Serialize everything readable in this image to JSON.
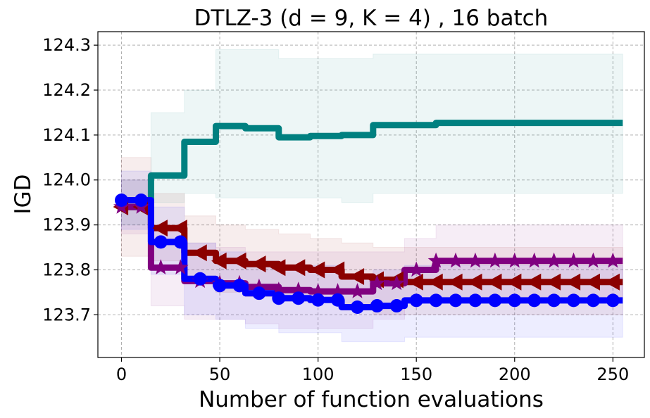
{
  "chart_data": {
    "type": "line",
    "title": "DTLZ-3 (d = 9, K = 4) , 16 batch",
    "xlabel": "Number of function evaluations",
    "ylabel": "IGD",
    "xlim": [
      -12,
      266
    ],
    "ylim": [
      123.605,
      124.33
    ],
    "xticks": [
      0,
      50,
      100,
      150,
      200,
      250
    ],
    "yticks": [
      123.7,
      123.8,
      123.9,
      124.0,
      124.1,
      124.2,
      124.3
    ],
    "ytick_labels": [
      "123.7",
      "123.8",
      "123.9",
      "124.0",
      "124.1",
      "124.2",
      "124.3"
    ],
    "grid": true,
    "series": [
      {
        "name": "teal",
        "color": "#008080",
        "marker": "none",
        "x": [
          0,
          15,
          32,
          48,
          63,
          80,
          96,
          112,
          128,
          144,
          160,
          176,
          192,
          208,
          224,
          240,
          255
        ],
        "values": [
          123.94,
          124.01,
          124.085,
          124.12,
          124.115,
          124.095,
          124.098,
          124.1,
          124.122,
          124.122,
          124.127,
          124.127,
          124.127,
          124.127,
          124.127,
          124.127,
          124.127
        ],
        "band_upper": [
          124.0,
          124.15,
          124.2,
          124.29,
          124.29,
          124.27,
          124.27,
          124.27,
          124.28,
          124.28,
          124.28,
          124.28,
          124.28,
          124.28,
          124.28,
          124.28,
          124.28
        ],
        "band_lower": [
          123.9,
          123.95,
          123.97,
          123.96,
          123.96,
          123.96,
          123.96,
          123.95,
          123.97,
          123.97,
          123.97,
          123.97,
          123.97,
          123.97,
          123.97,
          123.97,
          123.97
        ]
      },
      {
        "name": "darkred",
        "color": "#8b0000",
        "marker": "triangle-left",
        "x": [
          0,
          15,
          32,
          48,
          63,
          80,
          96,
          112,
          128,
          144,
          160,
          176,
          192,
          208,
          224,
          240,
          255
        ],
        "values": [
          123.94,
          123.893,
          123.838,
          123.82,
          123.813,
          123.805,
          123.8,
          123.785,
          123.778,
          123.773,
          123.773,
          123.773,
          123.773,
          123.773,
          123.773,
          123.773,
          123.773
        ],
        "band_upper": [
          124.05,
          123.97,
          123.92,
          123.9,
          123.89,
          123.88,
          123.87,
          123.86,
          123.85,
          123.85,
          123.85,
          123.85,
          123.85,
          123.85,
          123.85,
          123.85,
          123.85
        ],
        "band_lower": [
          123.83,
          123.82,
          123.77,
          123.75,
          123.74,
          123.73,
          123.73,
          123.71,
          123.7,
          123.7,
          123.7,
          123.7,
          123.7,
          123.7,
          123.7,
          123.7,
          123.7
        ]
      },
      {
        "name": "purple",
        "color": "#800080",
        "marker": "star",
        "x": [
          0,
          15,
          32,
          48,
          63,
          80,
          96,
          112,
          128,
          144,
          160,
          176,
          192,
          208,
          224,
          240,
          255
        ],
        "values": [
          123.94,
          123.805,
          123.775,
          123.77,
          123.762,
          123.755,
          123.752,
          123.752,
          123.77,
          123.8,
          123.82,
          123.82,
          123.82,
          123.82,
          123.82,
          123.82,
          123.82
        ],
        "band_upper": [
          124.0,
          123.89,
          123.86,
          123.85,
          123.84,
          123.84,
          123.84,
          123.84,
          123.84,
          123.87,
          123.9,
          123.9,
          123.9,
          123.9,
          123.9,
          123.9,
          123.9
        ],
        "band_lower": [
          123.88,
          123.72,
          123.69,
          123.69,
          123.68,
          123.67,
          123.67,
          123.67,
          123.69,
          123.73,
          123.74,
          123.74,
          123.74,
          123.74,
          123.74,
          123.74,
          123.74
        ]
      },
      {
        "name": "blue",
        "color": "#0000ff",
        "marker": "circle",
        "x": [
          0,
          15,
          32,
          48,
          63,
          80,
          96,
          112,
          128,
          144,
          160,
          176,
          192,
          208,
          224,
          240,
          255
        ],
        "values": [
          123.955,
          123.862,
          123.78,
          123.765,
          123.748,
          123.737,
          123.733,
          123.717,
          123.72,
          123.732,
          123.732,
          123.732,
          123.732,
          123.732,
          123.732,
          123.732,
          123.732
        ],
        "band_upper": [
          124.02,
          123.94,
          123.86,
          123.84,
          123.82,
          123.81,
          123.81,
          123.79,
          123.8,
          123.81,
          123.81,
          123.81,
          123.81,
          123.81,
          123.81,
          123.81,
          123.81
        ],
        "band_lower": [
          123.89,
          123.79,
          123.7,
          123.69,
          123.67,
          123.66,
          123.66,
          123.64,
          123.64,
          123.65,
          123.65,
          123.65,
          123.65,
          123.65,
          123.65,
          123.65,
          123.65
        ]
      }
    ]
  }
}
